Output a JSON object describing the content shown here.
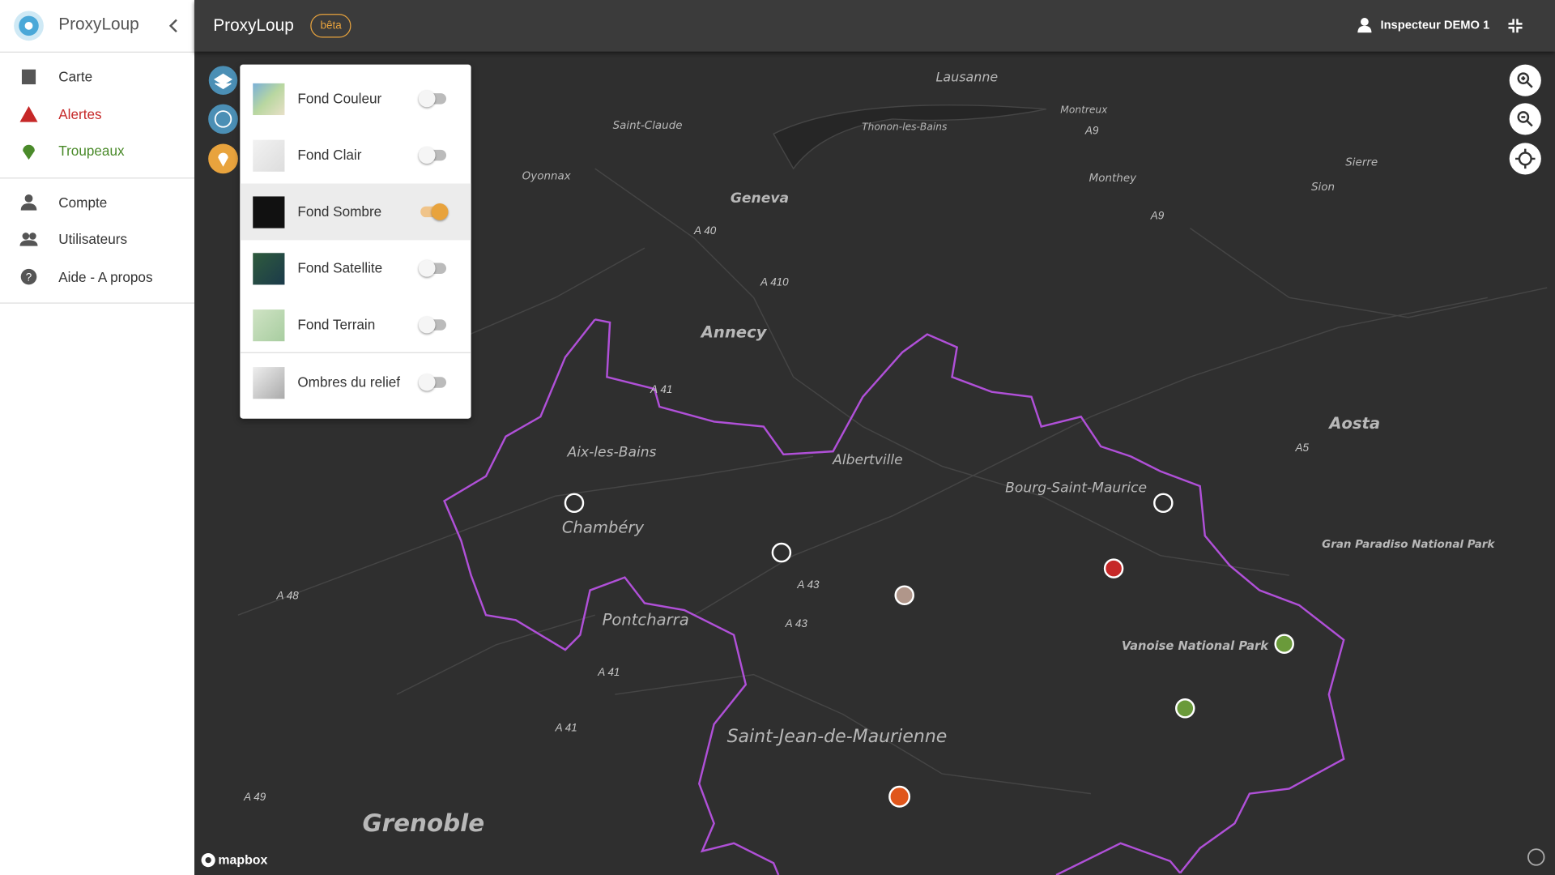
{
  "app": {
    "name": "ProxyLoup",
    "badge": "bêta"
  },
  "user": "Inspecteur DEMO 1",
  "nav": {
    "main": [
      "Carte",
      "Alertes",
      "Troupeaux"
    ],
    "account": [
      "Compte",
      "Utilisateurs",
      "Aide - A propos"
    ]
  },
  "layers": [
    {
      "label": "Fond Couleur",
      "on": false
    },
    {
      "label": "Fond Clair",
      "on": false
    },
    {
      "label": "Fond Sombre",
      "on": true
    },
    {
      "label": "Fond Satellite",
      "on": false
    },
    {
      "label": "Fond Terrain",
      "on": false
    },
    {
      "label": "Ombres du relief",
      "on": false
    }
  ],
  "map": {
    "places": [
      "Lausanne",
      "Montreux",
      "Thonon-les-Bains",
      "Saint-Claude",
      "Oyonnax",
      "Geneva",
      "Monthey",
      "Sierre",
      "Sion",
      "Annecy",
      "Aix-les-Bains",
      "Chambéry",
      "Albertville",
      "Bourg-Saint-Maurice",
      "Aosta",
      "Pontcharra",
      "Saint-Jean-de-Maurienne",
      "Grenoble",
      "Vanoise National Park",
      "Gran Paradiso National Park"
    ],
    "roads": [
      "A 40",
      "A 410",
      "A 41",
      "A 43",
      "A 43",
      "A 41",
      "A 41",
      "A 48",
      "A 49",
      "A5",
      "A9",
      "A9"
    ],
    "attribution": "mapbox"
  }
}
